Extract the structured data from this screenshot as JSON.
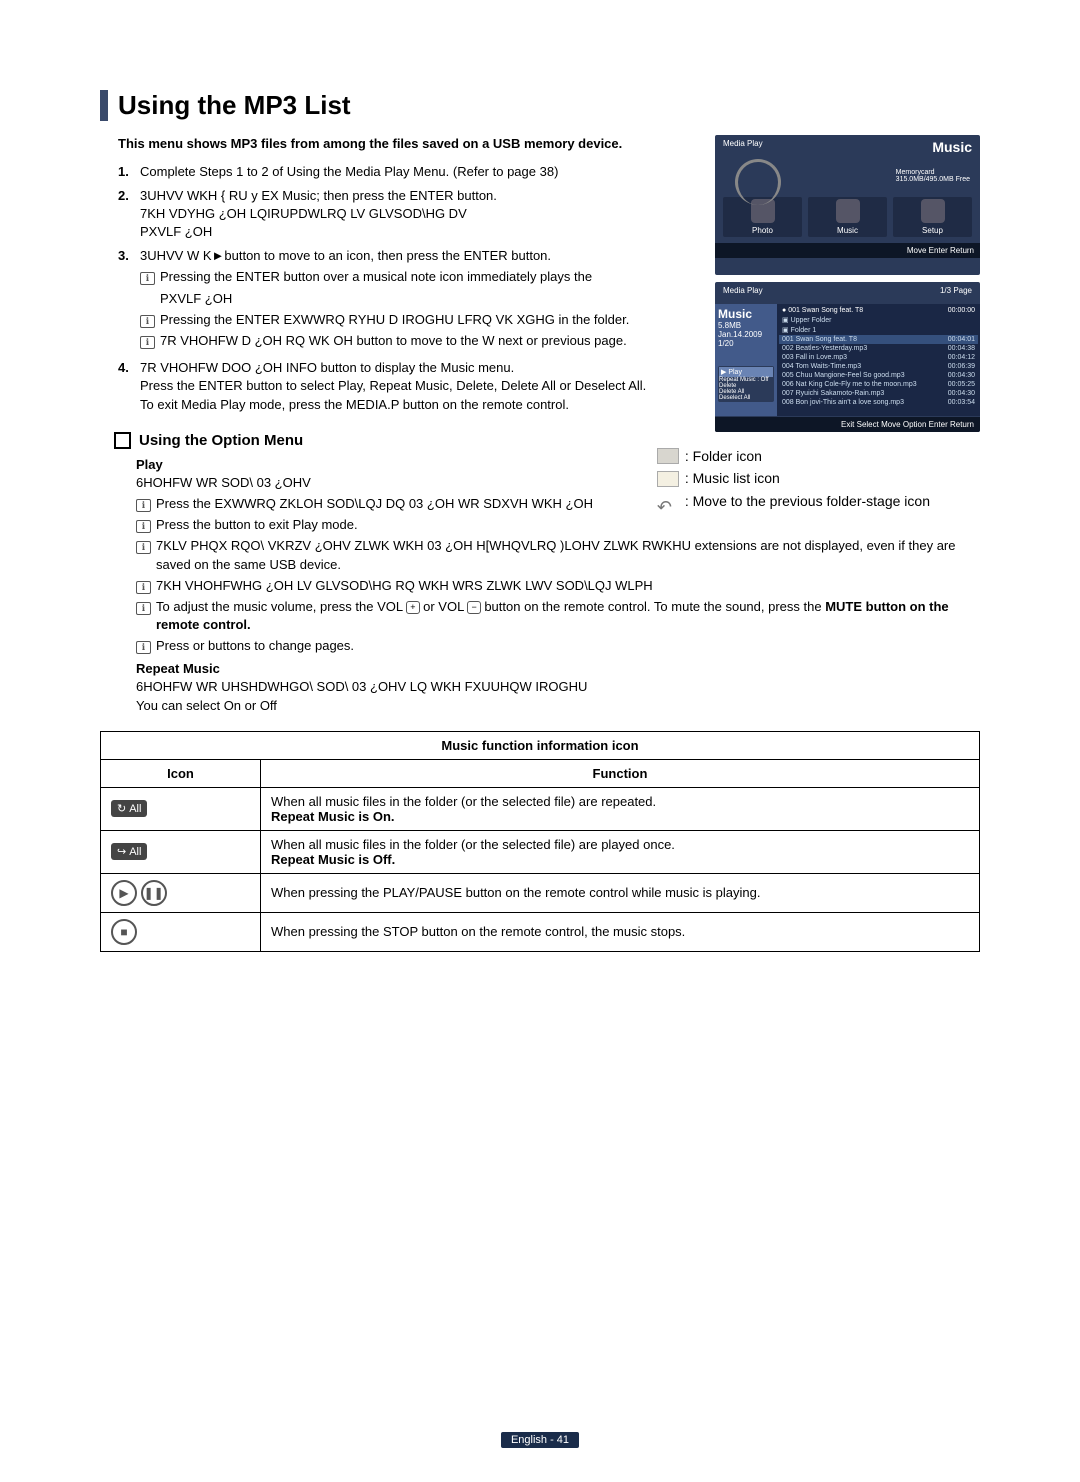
{
  "title": "Using the MP3 List",
  "intro": "This menu shows MP3 files from among the files saved on a USB memory device.",
  "steps": {
    "s1": "Complete Steps 1 to 2 of Using the Media Play Menu. (Refer to page 38)",
    "s2a": "3UHVV WKH { RU y EX Music; then press the ENTER button.",
    "s2b": "7KH VDYHG ¿OH LQIRUPDWLRQ LV GLVSOD\\HG DV",
    "s2c": "PXVLF ¿OH",
    "s3a": "3UHVV W K►button to move to an icon, then press the ENTER button.",
    "s3n1": "Pressing the ENTER button over a musical note icon immediately plays the",
    "s3n2": "Pressing the ENTER EXWWRQ RYHU D IROGHU LFRQ VK   XGHG in the folder.",
    "s3n3": "7R VHOHFW D ¿OH RQ WK OH button to move to the W next or previous page.",
    "s4a": "7R VHOHFW DOO ¿OH INFO button to display the Music menu.",
    "s4b": "Press the ENTER button to select Play, Repeat Music, Delete, Delete All or Deselect All.",
    "s4c": "To exit Media Play mode, press the MEDIA.P button on the remote control."
  },
  "optionHead": "Using the Option Menu",
  "play": {
    "head": "Play",
    "l1": "6HOHFW WR SOD\\ 03 ¿OHV",
    "n1": "Press the  EXWWRQ ZKLOH SOD\\LQJ DQ 03 ¿OH WR SDXVH WKH ¿OH",
    "n2": "Press the  button to exit Play mode.",
    "n3": "7KLV PHQX RQO\\ VKRZV ¿OHV ZLWK WKH 03 ¿OH H[WHQVLRQ )LOHV ZLWK RWKHU extensions are not displayed, even if they are saved on the same USB device.",
    "n4": "7KH VHOHFWHG ¿OH LV GLVSOD\\HG RQ WKH WRS ZLWK LWV SOD\\LQJ WLPH",
    "n5a": "To adjust the music volume, press the VOL ",
    "n5b": " or VOL ",
    "n5c": " button on the remote control. To mute the sound, press the ",
    "n5d": "MUTE button on the remote control.",
    "n6": "Press  or  buttons to change pages."
  },
  "repeat": {
    "head": "Repeat Music",
    "l1": "6HOHFW WR UHSHDWHGO\\ SOD\\ 03 ¿OHV LQ WKH FXUUHQW IROGHU",
    "l2": "You can select On or Off"
  },
  "legend": {
    "folder": ": Folder icon",
    "music": ": Music list icon",
    "prev": ": Move to the previous folder-stage icon"
  },
  "table": {
    "caption": "Music function information icon",
    "h1": "Icon",
    "h2": "Function",
    "r1a": "When all music files in the folder (or the selected file) are repeated.",
    "r1b": "Repeat Music is On.",
    "r2a": "When all music files in the folder (or the selected file) are played once.",
    "r2b": "Repeat Music is Off.",
    "r3": "When pressing the PLAY/PAUSE button on the remote control while music is playing.",
    "r4": "When pressing the STOP button on the remote control, the music stops.",
    "badgeAll": "All"
  },
  "shot1": {
    "brand": "Media Play",
    "title": "Music",
    "sub": "Memorycard",
    "free": "315.0MB/495.0MB Free",
    "tile1": "Photo",
    "tile2": "Music",
    "tile3": "Setup",
    "foot": "Move   Enter   Return"
  },
  "shot2": {
    "brand": "Media Play",
    "pager": "1/3 Page",
    "leftTitle": "Music",
    "size": "5.8MB",
    "date": "Jan.14.2009",
    "count": "1/20",
    "opt1": "Repeat Music : Off",
    "opt2": "Delete",
    "opt3": "Delete All",
    "opt4": "Deselect All",
    "upper": "Upper Folder",
    "folder": "Folder 1",
    "tracks": [
      {
        "t": "001 Swan Song feat. T8",
        "d": "00:04:01"
      },
      {
        "t": "002 Beatles-Yesterday.mp3",
        "d": "00:04:38"
      },
      {
        "t": "003 Fall in Love.mp3",
        "d": "00:04:12"
      },
      {
        "t": "004 Tom Waits-Time.mp3",
        "d": "00:06:39"
      },
      {
        "t": "005 Chuu Mangione-Feel So good.mp3",
        "d": "00:04:30"
      },
      {
        "t": "006 Nat King Cole-Fly me to the moon.mp3",
        "d": "00:05:25"
      },
      {
        "t": "007 Ryuichi Sakamoto-Rain.mp3",
        "d": "00:04:30"
      },
      {
        "t": "008 Bon jovi-This ain't a love song.mp3",
        "d": "00:03:54"
      }
    ],
    "now": "001 Swan Song feat. T8",
    "time": "00:00:00",
    "foot": "Exit   Select   Move   Option   Enter   Return"
  },
  "footer": "English - 41"
}
